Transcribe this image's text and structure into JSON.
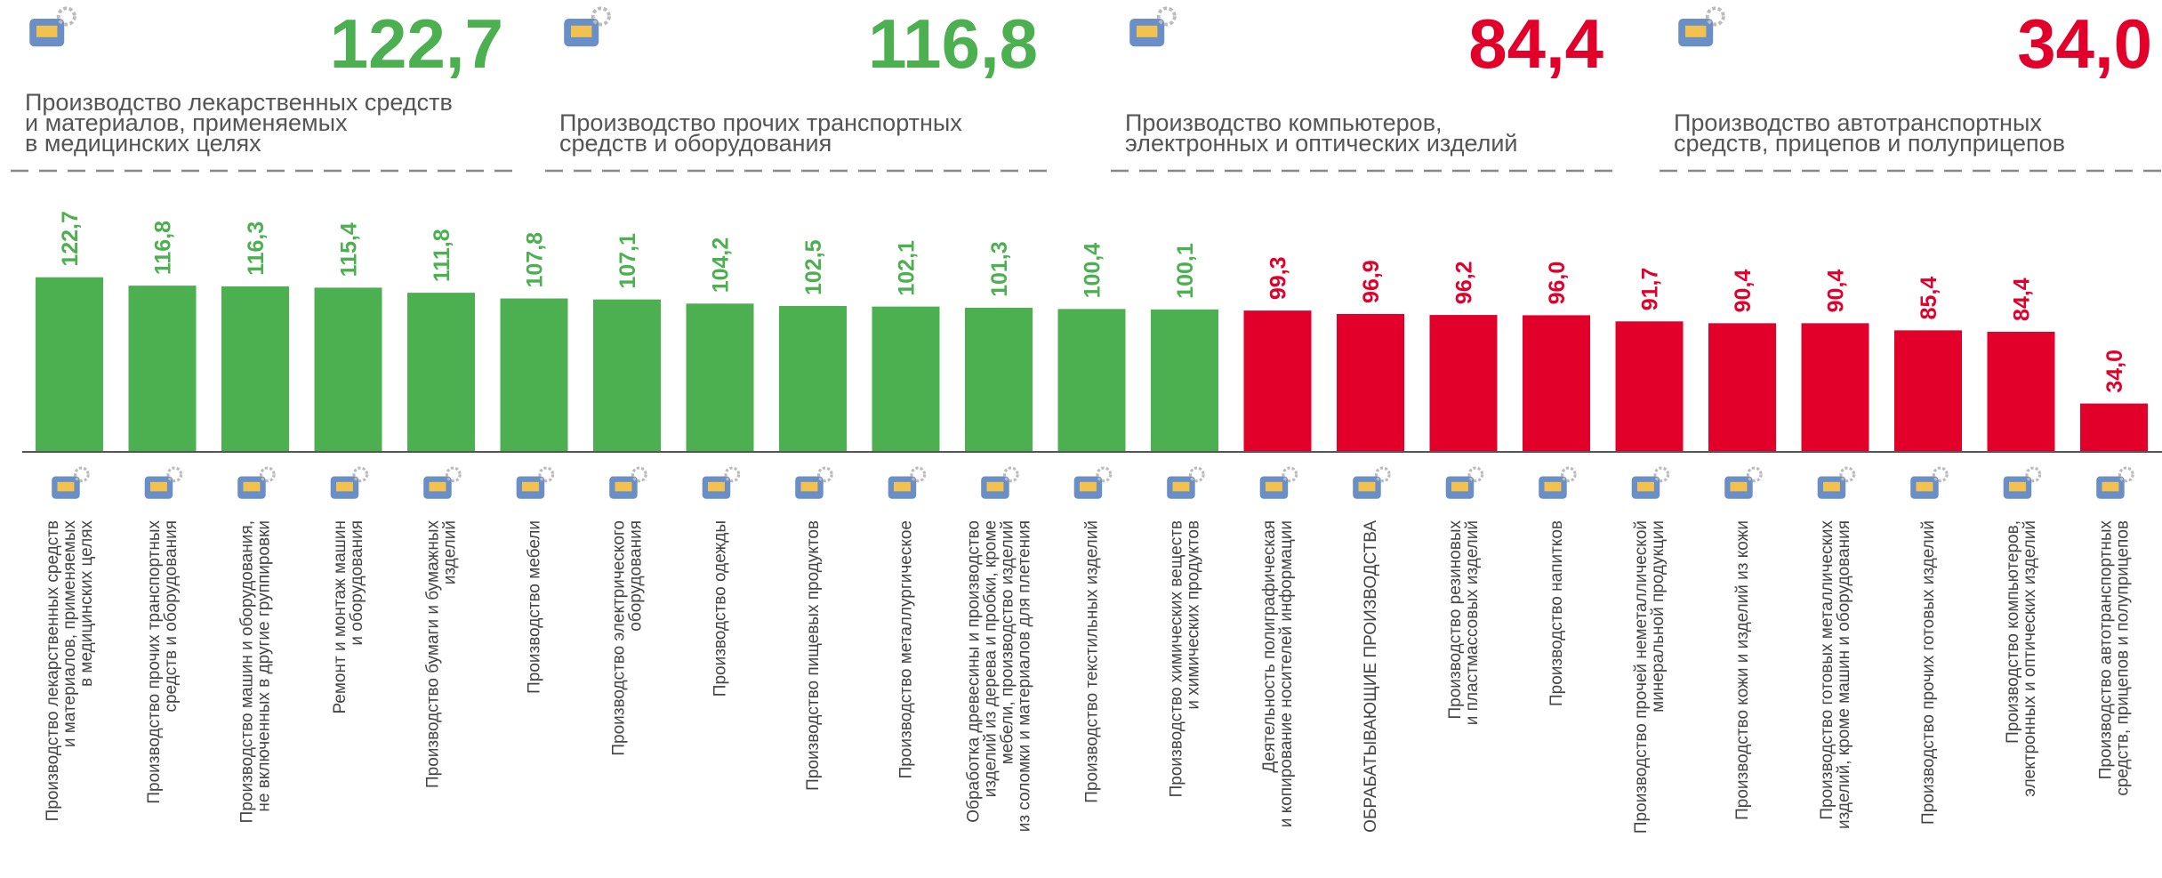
{
  "highlights": [
    {
      "value": "122,7",
      "color": "#4caf50",
      "label": [
        "Производство лекарственных средств",
        "и материалов, применяемых",
        "в медицинских целях"
      ]
    },
    {
      "value": "116,8",
      "color": "#4caf50",
      "label": [
        "Производство прочих транспортных",
        "средств и оборудования"
      ]
    },
    {
      "value": "84,4",
      "color": "#e2002a",
      "label": [
        "Производство компьютеров,",
        "электронных и оптических изделий"
      ]
    },
    {
      "value": "34,0",
      "color": "#e2002a",
      "label": [
        "Производство автотранспортных",
        "средств, прицепов и полуприцепов"
      ]
    }
  ],
  "chart_data": {
    "type": "bar",
    "categories": [
      [
        "Производство лекарственных средств",
        "и материалов, применяемых",
        "в медицинских целях"
      ],
      [
        "Производство прочих транспортных",
        "средств и оборудования"
      ],
      [
        "Производство машин и оборудования,",
        "не включенных в другие группировки"
      ],
      [
        "Ремонт и монтаж машин",
        "и оборудования"
      ],
      [
        "Производство бумаги и бумажных",
        "изделий"
      ],
      [
        "Производство мебели"
      ],
      [
        "Производство электрического",
        "оборудования"
      ],
      [
        "Производство одежды"
      ],
      [
        "Производство пищевых продуктов"
      ],
      [
        "Производство металлургическое"
      ],
      [
        "Обработка древесины и производство",
        "изделий из дерева и пробки, кроме",
        "мебели, производство изделий",
        "из соломки и материалов для плетения"
      ],
      [
        "Производство текстильных изделий"
      ],
      [
        "Производство химических веществ",
        "и химических продуктов"
      ],
      [
        "Деятельность полиграфическая",
        "и копирование носителей информации"
      ],
      [
        "ОБРАБАТЫВАЮЩИЕ ПРОИЗВОДСТВА"
      ],
      [
        "Производство резиновых",
        "и пластмассовых изделий"
      ],
      [
        "Производство напитков"
      ],
      [
        "Производство прочей неметаллической",
        "минеральной продукции"
      ],
      [
        "Производство кожи и изделий из кожи"
      ],
      [
        "Производство готовых металлических",
        "изделий, кроме машин и оборудования"
      ],
      [
        "Производство прочих готовых изделий"
      ],
      [
        "Производство компьютеров,",
        "электронных и оптических изделий"
      ],
      [
        "Производство автотранспортных",
        "средств, прицепов и полуприцепов"
      ]
    ],
    "values": [
      122.7,
      116.8,
      116.3,
      115.4,
      111.8,
      107.8,
      107.1,
      104.2,
      102.5,
      102.1,
      101.3,
      100.4,
      100.1,
      99.3,
      96.9,
      96.2,
      96.0,
      91.7,
      90.4,
      90.4,
      85.4,
      84.4,
      34.0
    ],
    "value_labels": [
      "122,7",
      "116,8",
      "116,3",
      "115,4",
      "111,8",
      "107,8",
      "107,1",
      "104,2",
      "102,5",
      "102,1",
      "101,3",
      "100,4",
      "100,1",
      "99,3",
      "96,9",
      "96,2",
      "96,0",
      "91,7",
      "90,4",
      "90,4",
      "85,4",
      "84,4",
      "34,0"
    ],
    "colors": [
      "#4caf50",
      "#4caf50",
      "#4caf50",
      "#4caf50",
      "#4caf50",
      "#4caf50",
      "#4caf50",
      "#4caf50",
      "#4caf50",
      "#4caf50",
      "#4caf50",
      "#4caf50",
      "#4caf50",
      "#e2002a",
      "#e2002a",
      "#e2002a",
      "#e2002a",
      "#e2002a",
      "#e2002a",
      "#e2002a",
      "#e2002a",
      "#e2002a",
      "#e2002a"
    ],
    "ylim": [
      0,
      130
    ]
  }
}
